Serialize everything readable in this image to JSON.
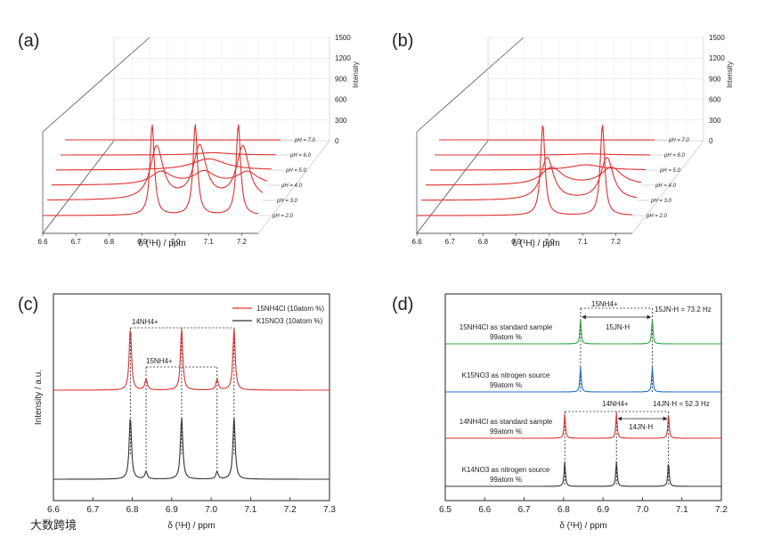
{
  "watermark": "大数跨境",
  "chart_data": [
    {
      "id": "a",
      "type": "line",
      "panel_label": "(a)",
      "xlabel": "δ (¹H) / ppm",
      "zlabel": "Intensity",
      "xticks": [
        "6.6",
        "6.7",
        "6.8",
        "6.9",
        "7.0",
        "7.1",
        "7.2"
      ],
      "zticks": [
        "0",
        "300",
        "600",
        "900",
        "1200",
        "1500"
      ],
      "series": [
        {
          "name": "pH = 2.0",
          "label": "pH = 2.0",
          "peaks": [
            [
              6.93,
              1200
            ],
            [
              7.06,
              1200
            ],
            [
              7.19,
              1200
            ]
          ]
        },
        {
          "name": "pH = 3.0",
          "label": "pH = 3.0",
          "peaks": [
            [
              6.93,
              700
            ],
            [
              7.06,
              700
            ],
            [
              7.19,
              700
            ]
          ]
        },
        {
          "name": "pH = 4.0",
          "label": "pH = 4.0",
          "peaks": [
            [
              6.93,
              170
            ],
            [
              7.06,
              170
            ],
            [
              7.19,
              170
            ]
          ]
        },
        {
          "name": "pH = 5.0",
          "label": "pH = 5.0",
          "peaks": [
            [
              7.06,
              150
            ]
          ]
        },
        {
          "name": "pH = 6.0",
          "label": "pH = 6.0",
          "peaks": [
            [
              7.06,
              30
            ]
          ]
        },
        {
          "name": "pH = 7.0",
          "label": "pH = 7.0",
          "peaks": []
        }
      ]
    },
    {
      "id": "b",
      "type": "line",
      "panel_label": "(b)",
      "xlabel": "δ (¹H) / ppm",
      "zlabel": "Intensity",
      "xticks": [
        "6.6",
        "6.7",
        "6.8",
        "6.9",
        "7.0",
        "7.1",
        "7.2"
      ],
      "zticks": [
        "0",
        "300",
        "600",
        "900",
        "1200",
        "1500"
      ],
      "series": [
        {
          "name": "pH = 2.0",
          "label": "pH = 2.0",
          "peaks": [
            [
              6.98,
              1200
            ],
            [
              7.16,
              1200
            ]
          ]
        },
        {
          "name": "pH = 3.0",
          "label": "pH = 3.0",
          "peaks": [
            [
              6.98,
              560
            ],
            [
              7.16,
              560
            ]
          ]
        },
        {
          "name": "pH = 4.0",
          "label": "pH = 4.0",
          "peaks": [
            [
              6.98,
              230
            ],
            [
              7.16,
              230
            ]
          ]
        },
        {
          "name": "pH = 5.0",
          "label": "pH = 5.0",
          "peaks": [
            [
              7.07,
              70
            ]
          ]
        },
        {
          "name": "pH = 6.0",
          "label": "pH = 6.0",
          "peaks": [
            [
              7.07,
              15
            ]
          ]
        },
        {
          "name": "pH = 7.0",
          "label": "pH = 7.0",
          "peaks": []
        }
      ]
    },
    {
      "id": "c",
      "type": "line",
      "panel_label": "(c)",
      "xlabel": "δ (¹H) / ppm",
      "ylabel": "Intensity / a.u.",
      "xlim": [
        6.6,
        7.3
      ],
      "xticks": [
        "6.6",
        "6.7",
        "6.8",
        "6.9",
        "7.0",
        "7.1",
        "7.2",
        "7.3"
      ],
      "legend": [
        {
          "name": "15NH4Cl (10atom %)",
          "color": "#e03030"
        },
        {
          "name": "K15NO3 (10atom %)",
          "color": "#333333"
        }
      ],
      "annotations": [
        "14NH4+",
        "15NH4+"
      ],
      "series": [
        {
          "name": "15NH4Cl (10atom %)",
          "color": "#e03030",
          "peaks": [
            [
              6.795,
              1.0
            ],
            [
              6.835,
              0.18
            ],
            [
              6.925,
              1.0
            ],
            [
              7.015,
              0.18
            ],
            [
              7.058,
              1.0
            ]
          ]
        },
        {
          "name": "K15NO3 (10atom %)",
          "color": "#333333",
          "peaks": [
            [
              6.795,
              1.0
            ],
            [
              6.835,
              0.12
            ],
            [
              6.925,
              1.0
            ],
            [
              7.015,
              0.12
            ],
            [
              7.058,
              1.0
            ]
          ]
        }
      ]
    },
    {
      "id": "d",
      "type": "line",
      "panel_label": "(d)",
      "xlabel": "δ (¹H) / ppm",
      "xlim": [
        6.5,
        7.2
      ],
      "xticks": [
        "6.5",
        "6.6",
        "6.7",
        "6.8",
        "6.9",
        "7.0",
        "7.1",
        "7.2"
      ],
      "annotations": [
        "15NH4+",
        "15JN-H",
        "15JN-H = 73.2 Hz",
        "14NH4+",
        "14JN-H",
        "14JN-H = 52.3 Hz"
      ],
      "series": [
        {
          "name": "15NH4Cl as standard sample",
          "sub": "99atom %",
          "color": "#2ea043",
          "peaks": [
            [
              6.843,
              1.0
            ],
            [
              7.025,
              1.0
            ]
          ]
        },
        {
          "name": "K15NO3 as nitrogen source",
          "sub": "99atom %",
          "color": "#1f6fd0",
          "peaks": [
            [
              6.843,
              1.0
            ],
            [
              7.025,
              1.0
            ]
          ]
        },
        {
          "name": "14NH4Cl as standard sample",
          "sub": "99atom %",
          "color": "#e03030",
          "peaks": [
            [
              6.803,
              1.0
            ],
            [
              6.934,
              1.0
            ],
            [
              7.066,
              1.0
            ]
          ]
        },
        {
          "name": "K14NO3 as nitrogen source",
          "sub": "99atom %",
          "color": "#333333",
          "peaks": [
            [
              6.803,
              1.0
            ],
            [
              6.934,
              1.0
            ],
            [
              7.066,
              1.0
            ]
          ]
        }
      ]
    }
  ]
}
